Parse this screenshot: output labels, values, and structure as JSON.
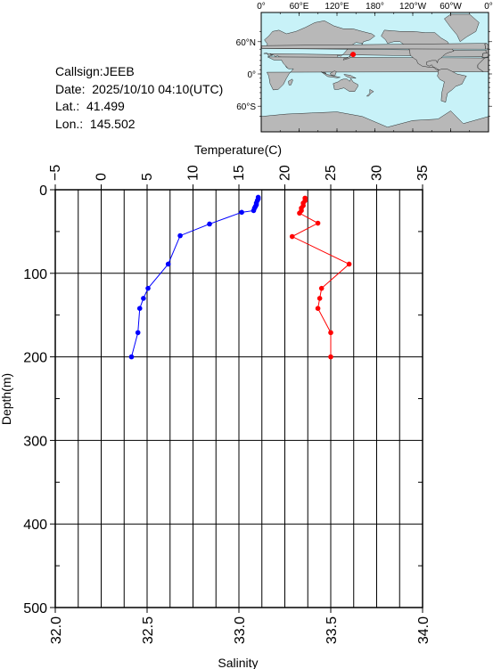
{
  "info": {
    "callsign": "Callsign:JEEB",
    "date": "Date:  2025/10/10 04:10(UTC)",
    "lat": "Lat.:  41.499",
    "lon": "Lon.:  145.502"
  },
  "map": {
    "lon_ticks": [
      "0°",
      "60°E",
      "120°E",
      "180°",
      "120°W",
      "60°W",
      "0°"
    ],
    "lat_ticks": [
      "60°N",
      "0°",
      "60°S"
    ],
    "station": {
      "lon": 145.502,
      "lat": 41.499
    },
    "colors": {
      "ocean": "#c8f2f8",
      "land": "#b8b8b8",
      "marker": "#ff0000"
    }
  },
  "chart_data": {
    "type": "line",
    "ylabel": "Depth(m)",
    "ylim": [
      500,
      0
    ],
    "y_ticks": [
      0,
      100,
      200,
      300,
      400,
      500
    ],
    "top_axis": {
      "label": "Temperature(C)",
      "range": [
        -5,
        35
      ],
      "ticks": [
        -5,
        0,
        5,
        10,
        15,
        20,
        25,
        30,
        35
      ]
    },
    "bottom_axis": {
      "label": "Salinity",
      "range": [
        32.0,
        34.0
      ],
      "ticks": [
        "32.0",
        "32.5",
        "33.0",
        "33.5",
        "34.0"
      ]
    },
    "grid": true,
    "series": [
      {
        "quantity": "temperature",
        "axis": "top",
        "color": "#0000ff",
        "points": [
          [
            17.1,
            9
          ],
          [
            17.1,
            11
          ],
          [
            17.0,
            13
          ],
          [
            16.9,
            16
          ],
          [
            16.9,
            18
          ],
          [
            16.8,
            20
          ],
          [
            16.7,
            22
          ],
          [
            16.6,
            25
          ],
          [
            15.3,
            27
          ],
          [
            11.8,
            41
          ],
          [
            8.6,
            55
          ],
          [
            7.3,
            89
          ],
          [
            5.1,
            118
          ],
          [
            4.6,
            130
          ],
          [
            4.2,
            142
          ],
          [
            4.0,
            171
          ],
          [
            3.3,
            200
          ]
        ]
      },
      {
        "quantity": "salinity",
        "axis": "bottom",
        "color": "#ff0000",
        "points": [
          [
            33.36,
            10
          ],
          [
            33.36,
            13
          ],
          [
            33.35,
            16
          ],
          [
            33.35,
            19
          ],
          [
            33.34,
            22
          ],
          [
            33.34,
            25
          ],
          [
            33.33,
            28
          ],
          [
            33.43,
            40
          ],
          [
            33.29,
            56
          ],
          [
            33.6,
            89
          ],
          [
            33.45,
            118
          ],
          [
            33.44,
            130
          ],
          [
            33.43,
            142
          ],
          [
            33.5,
            171
          ],
          [
            33.5,
            200
          ]
        ]
      }
    ]
  }
}
